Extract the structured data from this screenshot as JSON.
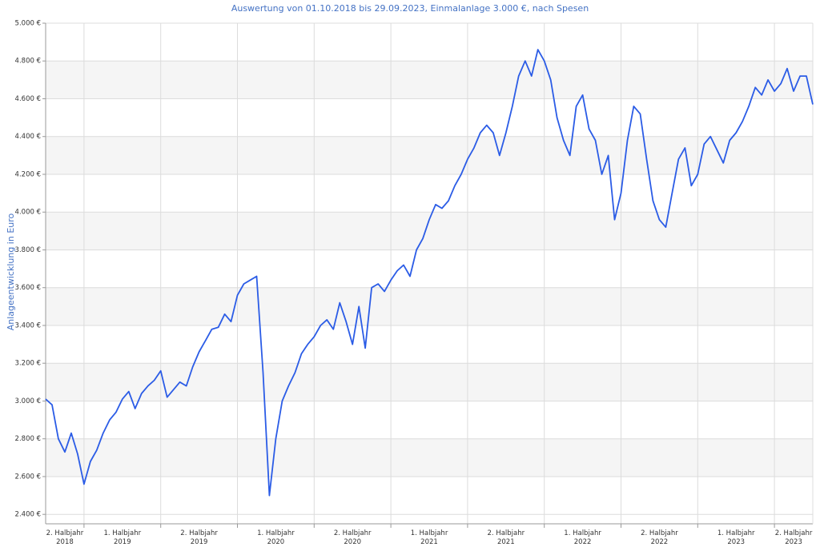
{
  "chart_data": {
    "type": "line",
    "title": "Auswertung von 01.10.2018 bis 29.09.2023, Einmalanlage 3.000 €, nach Spesen",
    "y_label": "Anlageentwicklung  in Euro",
    "color": "#2b5ce6",
    "grid": true,
    "xlim": [
      2018.75,
      2023.75
    ],
    "xgrid": [
      2019,
      2019.5,
      2020,
      2020.5,
      2021,
      2021.5,
      2022,
      2022.5,
      2023,
      2023.5
    ],
    "xticks": [
      {
        "value": 2018.875,
        "label": "2. Halbjahr 2018"
      },
      {
        "value": 2019.25,
        "label": "1. Halbjahr 2019"
      },
      {
        "value": 2019.75,
        "label": "2. Halbjahr 2019"
      },
      {
        "value": 2020.25,
        "label": "1. Halbjahr 2020"
      },
      {
        "value": 2020.75,
        "label": "2. Halbjahr 2020"
      },
      {
        "value": 2021.25,
        "label": "1. Halbjahr 2021"
      },
      {
        "value": 2021.75,
        "label": "2. Halbjahr 2021"
      },
      {
        "value": 2022.25,
        "label": "1. Halbjahr 2022"
      },
      {
        "value": 2022.75,
        "label": "2. Halbjahr 2022"
      },
      {
        "value": 2023.25,
        "label": "1. Halbjahr 2023"
      },
      {
        "value": 2023.625,
        "label": "2. Halbjahr 2023"
      }
    ],
    "ylim": [
      2350,
      5000
    ],
    "yticks": [
      {
        "value": 2400,
        "label": "2.400 €"
      },
      {
        "value": 2600,
        "label": "2.600 €"
      },
      {
        "value": 2800,
        "label": "2.800 €"
      },
      {
        "value": 3000,
        "label": "3.000 €"
      },
      {
        "value": 3200,
        "label": "3.200 €"
      },
      {
        "value": 3400,
        "label": "3.400 €"
      },
      {
        "value": 3600,
        "label": "3.600 €"
      },
      {
        "value": 3800,
        "label": "3.800 €"
      },
      {
        "value": 4000,
        "label": "4.000 €"
      },
      {
        "value": 4200,
        "label": "4.200 €"
      },
      {
        "value": 4400,
        "label": "4.400 €"
      },
      {
        "value": 4600,
        "label": "4.600 €"
      },
      {
        "value": 4800,
        "label": "4.800 €"
      },
      {
        "value": 5000,
        "label": "5.000 €"
      }
    ],
    "x": [
      2018.75,
      2018.792,
      2018.833,
      2018.875,
      2018.917,
      2018.958,
      2019.0,
      2019.042,
      2019.083,
      2019.125,
      2019.167,
      2019.208,
      2019.25,
      2019.292,
      2019.333,
      2019.375,
      2019.417,
      2019.458,
      2019.5,
      2019.542,
      2019.583,
      2019.625,
      2019.667,
      2019.708,
      2019.75,
      2019.792,
      2019.833,
      2019.875,
      2019.917,
      2019.958,
      2020.0,
      2020.042,
      2020.083,
      2020.125,
      2020.167,
      2020.208,
      2020.25,
      2020.292,
      2020.333,
      2020.375,
      2020.417,
      2020.458,
      2020.5,
      2020.542,
      2020.583,
      2020.625,
      2020.667,
      2020.708,
      2020.75,
      2020.792,
      2020.833,
      2020.875,
      2020.917,
      2020.958,
      2021.0,
      2021.042,
      2021.083,
      2021.125,
      2021.167,
      2021.208,
      2021.25,
      2021.292,
      2021.333,
      2021.375,
      2021.417,
      2021.458,
      2021.5,
      2021.542,
      2021.583,
      2021.625,
      2021.667,
      2021.708,
      2021.75,
      2021.792,
      2021.833,
      2021.875,
      2021.917,
      2021.958,
      2022.0,
      2022.042,
      2022.083,
      2022.125,
      2022.167,
      2022.208,
      2022.25,
      2022.292,
      2022.333,
      2022.375,
      2022.417,
      2022.458,
      2022.5,
      2022.542,
      2022.583,
      2022.625,
      2022.667,
      2022.708,
      2022.75,
      2022.792,
      2022.833,
      2022.875,
      2022.917,
      2022.958,
      2023.0,
      2023.042,
      2023.083,
      2023.125,
      2023.167,
      2023.208,
      2023.25,
      2023.292,
      2023.333,
      2023.375,
      2023.417,
      2023.458,
      2023.5,
      2023.542,
      2023.583,
      2023.625,
      2023.667,
      2023.708,
      2023.75
    ],
    "values": [
      3010,
      2980,
      2800,
      2730,
      2830,
      2720,
      2560,
      2680,
      2740,
      2830,
      2900,
      2940,
      3010,
      3050,
      2960,
      3040,
      3080,
      3110,
      3160,
      3020,
      3060,
      3100,
      3080,
      3180,
      3260,
      3320,
      3380,
      3390,
      3460,
      3420,
      3560,
      3620,
      3640,
      3660,
      3150,
      2500,
      2800,
      3000,
      3080,
      3150,
      3250,
      3300,
      3340,
      3400,
      3430,
      3380,
      3520,
      3420,
      3300,
      3500,
      3280,
      3600,
      3620,
      3580,
      3640,
      3690,
      3720,
      3660,
      3800,
      3860,
      3960,
      4040,
      4020,
      4060,
      4140,
      4200,
      4280,
      4340,
      4420,
      4460,
      4420,
      4300,
      4420,
      4560,
      4720,
      4800,
      4720,
      4860,
      4800,
      4700,
      4500,
      4380,
      4300,
      4560,
      4620,
      4440,
      4380,
      4200,
      4300,
      3960,
      4100,
      4380,
      4560,
      4520,
      4280,
      4060,
      3960,
      3920,
      4100,
      4280,
      4340,
      4140,
      4200,
      4360,
      4400,
      4330,
      4260,
      4380,
      4420,
      4480,
      4560,
      4660,
      4620,
      4700,
      4640,
      4680,
      4760,
      4640,
      4720,
      4720,
      4570
    ]
  }
}
